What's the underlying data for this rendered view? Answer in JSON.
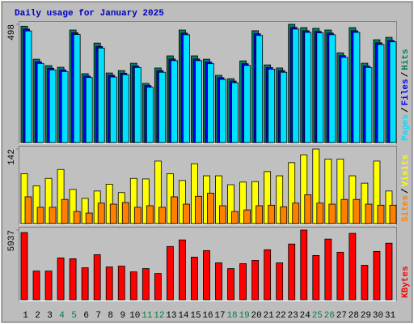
{
  "chart_data": [
    {
      "type": "bar",
      "title": "Daily usage for January 2025",
      "ylim": [
        0,
        498
      ],
      "yticks": [
        498
      ],
      "legend_separator": "/",
      "series": [
        {
          "name": "Hits",
          "color": "#008060",
          "values": [
            490,
            351,
            324,
            317,
            474,
            290,
            419,
            293,
            303,
            334,
            249,
            314,
            365,
            474,
            365,
            351,
            283,
            269,
            344,
            471,
            327,
            314,
            498,
            484,
            481,
            474,
            378,
            484,
            334,
            433,
            443
          ]
        },
        {
          "name": "Files",
          "color": "#0000ff",
          "values": [
            478,
            340,
            313,
            306,
            462,
            280,
            405,
            283,
            292,
            322,
            240,
            303,
            352,
            461,
            352,
            339,
            273,
            259,
            332,
            458,
            316,
            303,
            485,
            471,
            468,
            461,
            366,
            471,
            322,
            420,
            430
          ]
        },
        {
          "name": "Pages",
          "color": "#00e0ff",
          "values": [
            470,
            333,
            306,
            299,
            455,
            274,
            398,
            276,
            286,
            316,
            233,
            296,
            345,
            454,
            345,
            332,
            266,
            252,
            325,
            451,
            309,
            296,
            478,
            464,
            462,
            454,
            359,
            464,
            316,
            413,
            424
          ]
        }
      ]
    },
    {
      "type": "bar",
      "ylim": [
        0,
        142
      ],
      "yticks": [
        142
      ],
      "legend_separator": "/",
      "series": [
        {
          "name": "Visits",
          "color": "#ffff00",
          "values": [
            95,
            72,
            86,
            103,
            65,
            48,
            62,
            75,
            59,
            86,
            85,
            119,
            95,
            82,
            114,
            91,
            91,
            74,
            79,
            80,
            99,
            91,
            116,
            131,
            142,
            123,
            123,
            91,
            77,
            119,
            62
          ]
        },
        {
          "name": "Sites",
          "color": "#ff8000",
          "values": [
            51,
            31,
            31,
            46,
            23,
            20,
            39,
            37,
            40,
            31,
            34,
            31,
            51,
            37,
            52,
            58,
            34,
            23,
            26,
            34,
            35,
            32,
            39,
            55,
            39,
            37,
            46,
            46,
            37,
            35,
            35
          ]
        }
      ]
    },
    {
      "type": "bar",
      "ylim": [
        0,
        5937
      ],
      "yticks": [
        5937
      ],
      "categories": [
        "1",
        "2",
        "3",
        "4",
        "5",
        "6",
        "7",
        "8",
        "9",
        "10",
        "11",
        "12",
        "13",
        "14",
        "15",
        "16",
        "17",
        "18",
        "19",
        "20",
        "21",
        "22",
        "23",
        "24",
        "25",
        "26",
        "27",
        "28",
        "29",
        "30",
        "31"
      ],
      "category_colors": [
        "#000000",
        "#000000",
        "#000000",
        "#008040",
        "#008040",
        "#000000",
        "#000000",
        "#000000",
        "#000000",
        "#000000",
        "#008040",
        "#008040",
        "#000000",
        "#000000",
        "#000000",
        "#000000",
        "#000000",
        "#008040",
        "#008040",
        "#000000",
        "#000000",
        "#000000",
        "#000000",
        "#000000",
        "#008040",
        "#008040",
        "#000000",
        "#000000",
        "#000000",
        "#000000",
        "#000000"
      ],
      "series": [
        {
          "name": "KBytes",
          "color": "#ff0000",
          "values": [
            5727,
            2443,
            2443,
            3560,
            3490,
            2722,
            3840,
            2792,
            2862,
            2373,
            2652,
            2234,
            4538,
            5097,
            3630,
            4188,
            3141,
            2652,
            3071,
            3350,
            4258,
            3141,
            4747,
            5937,
            3770,
            5167,
            4049,
            5656,
            2932,
            4118,
            4817
          ]
        }
      ]
    }
  ]
}
